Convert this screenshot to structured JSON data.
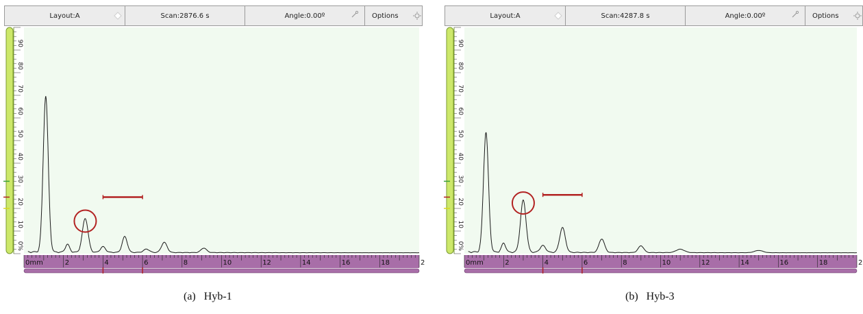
{
  "colors": {
    "plot_background": "#f1faf0",
    "signal_line": "#1a1a1a",
    "marker_red": "#b22222",
    "ruler_purple": "#a86ea8",
    "amplitude_scale_green": "#cde86a"
  },
  "panels": [
    {
      "toolbar": {
        "layout_label": "Layout:A",
        "scan_label": "Scan:2876.6 s",
        "angle_label": "Angle:0.00º",
        "options_label": "Options"
      },
      "amplitude_ticks": [
        "0%",
        "10",
        "20",
        "30",
        "40",
        "50",
        "60",
        "70",
        "80",
        "90"
      ],
      "depth_ticks": [
        "0mm",
        "2",
        "4",
        "6",
        "8",
        "10",
        "12",
        "14",
        "16",
        "18",
        "2"
      ],
      "caption": {
        "tag": "(a)",
        "label": "Hyb-1"
      },
      "ascan_peaks": [
        [
          1.1,
          69,
          0.18
        ],
        [
          3.1,
          15,
          0.2
        ],
        [
          5.1,
          7,
          0.18
        ],
        [
          7.1,
          4.5,
          0.2
        ],
        [
          9.1,
          2,
          0.2
        ],
        [
          2.2,
          3.5,
          0.15
        ],
        [
          4.0,
          2.5,
          0.18
        ],
        [
          6.2,
          1.5,
          0.2
        ]
      ],
      "gate_range_mm": [
        4.0,
        6.0
      ],
      "gate_level_pct": 25,
      "circled_peak": {
        "depth_mm": 3.1,
        "amplitude_pct": 15
      }
    },
    {
      "toolbar": {
        "layout_label": "Layout:A",
        "scan_label": "Scan:4287.8 s",
        "angle_label": "Angle:0.00º",
        "options_label": "Options"
      },
      "amplitude_ticks": [
        "0%",
        "10",
        "20",
        "30",
        "40",
        "50",
        "60",
        "70",
        "80",
        "90"
      ],
      "depth_ticks": [
        "0mm",
        "2",
        "4",
        "6",
        "8",
        "10",
        "12",
        "14",
        "16",
        "18",
        "2"
      ],
      "caption": {
        "tag": "(b)",
        "label": "Hyb-3"
      },
      "ascan_peaks": [
        [
          1.1,
          53,
          0.18
        ],
        [
          3.0,
          23,
          0.2
        ],
        [
          5.0,
          11,
          0.2
        ],
        [
          7.0,
          6,
          0.2
        ],
        [
          9.0,
          3,
          0.2
        ],
        [
          11.0,
          1.5,
          0.3
        ],
        [
          15.0,
          1,
          0.3
        ],
        [
          2.0,
          4,
          0.15
        ],
        [
          4.0,
          3,
          0.2
        ]
      ],
      "gate_range_mm": [
        4.0,
        6.0
      ],
      "gate_level_pct": 26,
      "circled_peak": {
        "depth_mm": 3.0,
        "amplitude_pct": 23
      }
    }
  ]
}
